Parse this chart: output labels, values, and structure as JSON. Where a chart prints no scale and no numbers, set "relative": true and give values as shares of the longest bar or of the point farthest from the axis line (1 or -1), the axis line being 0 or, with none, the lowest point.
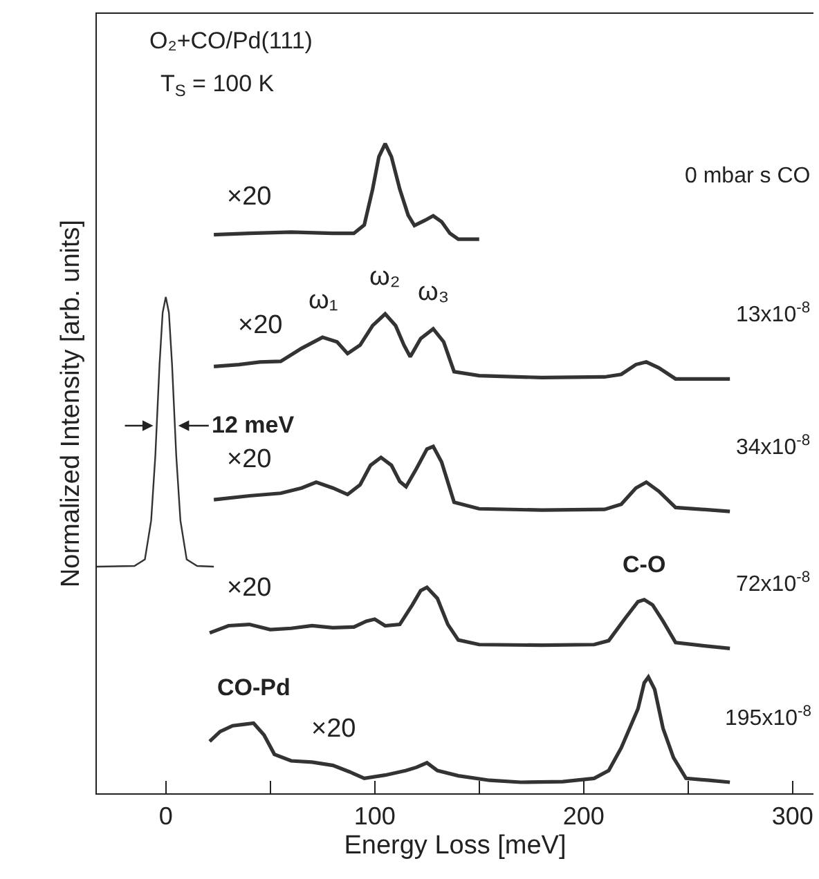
{
  "chart_data": {
    "type": "line",
    "relative": true,
    "xlabel": "Energy Loss [meV]",
    "ylabel": "Normalized Intensity [arb. units]",
    "xlim": [
      -33,
      310
    ],
    "xticks": [
      0,
      {
        "value": 50,
        "label": null
      },
      100,
      {
        "value": 150,
        "label": null
      },
      200,
      {
        "value": 250,
        "label": null
      },
      300
    ],
    "grid": false,
    "legend": false,
    "marker": "none",
    "line_style": "solid",
    "series": [
      {
        "color": "#333333",
        "x": [
          -33,
          -15,
          -10,
          -7,
          -5,
          -3,
          -1.5,
          0,
          1.5,
          3,
          5,
          7,
          10,
          15,
          23
        ],
        "values": [
          0.349,
          0.35,
          0.36,
          0.42,
          0.52,
          0.66,
          0.74,
          0.764,
          0.74,
          0.66,
          0.52,
          0.42,
          0.36,
          0.35,
          0.349
        ]
      },
      {
        "name": "0 mbar s CO",
        "color": "#333333",
        "x": [
          23,
          40,
          60,
          80,
          90,
          95,
          99,
          102,
          105,
          108,
          112,
          116,
          119,
          124,
          128,
          132,
          136,
          140,
          150
        ],
        "values": [
          0.86,
          0.862,
          0.864,
          0.862,
          0.862,
          0.875,
          0.93,
          0.98,
          1.0,
          0.98,
          0.93,
          0.89,
          0.874,
          0.882,
          0.889,
          0.88,
          0.862,
          0.853,
          0.853
        ]
      },
      {
        "name": "13x10$^{-8}$",
        "color": "#333333",
        "x": [
          23,
          35,
          45,
          55,
          65,
          75,
          82,
          87,
          93,
          99,
          105,
          110,
          114,
          117,
          122,
          128,
          133,
          138,
          150,
          180,
          210,
          218,
          225,
          230,
          236,
          244,
          270
        ],
        "values": [
          0.657,
          0.66,
          0.664,
          0.665,
          0.685,
          0.702,
          0.695,
          0.677,
          0.69,
          0.72,
          0.738,
          0.72,
          0.69,
          0.672,
          0.7,
          0.715,
          0.695,
          0.649,
          0.643,
          0.64,
          0.641,
          0.645,
          0.66,
          0.664,
          0.655,
          0.638,
          0.638
        ]
      },
      {
        "name": "34x10$^{-8}$",
        "color": "#333333",
        "x": [
          23,
          40,
          55,
          65,
          72,
          80,
          87,
          93,
          98,
          103,
          108,
          112,
          115,
          120,
          125,
          128,
          132,
          138,
          150,
          180,
          210,
          218,
          225,
          230,
          236,
          244,
          270
        ],
        "values": [
          0.452,
          0.458,
          0.462,
          0.47,
          0.479,
          0.47,
          0.46,
          0.475,
          0.505,
          0.517,
          0.505,
          0.48,
          0.472,
          0.5,
          0.53,
          0.534,
          0.51,
          0.448,
          0.438,
          0.436,
          0.437,
          0.445,
          0.47,
          0.479,
          0.465,
          0.44,
          0.434
        ]
      },
      {
        "name": "72x10$^{-8}$",
        "color": "#333333",
        "x": [
          21,
          30,
          40,
          50,
          60,
          70,
          80,
          90,
          96,
          100,
          105,
          112,
          118,
          122,
          125,
          130,
          135,
          140,
          150,
          180,
          205,
          212,
          220,
          226,
          229,
          233,
          238,
          244,
          255,
          270
        ],
        "values": [
          0.247,
          0.258,
          0.26,
          0.252,
          0.254,
          0.258,
          0.255,
          0.256,
          0.265,
          0.268,
          0.258,
          0.26,
          0.29,
          0.312,
          0.317,
          0.3,
          0.26,
          0.236,
          0.229,
          0.228,
          0.229,
          0.235,
          0.27,
          0.295,
          0.298,
          0.29,
          0.265,
          0.232,
          0.228,
          0.223
        ]
      },
      {
        "name": "195x10$^{-8}$",
        "color": "#333333",
        "x": [
          21,
          26,
          32,
          37,
          42,
          47,
          52,
          60,
          70,
          80,
          88,
          95,
          105,
          115,
          120,
          125,
          130,
          140,
          155,
          170,
          190,
          205,
          212,
          218,
          222,
          226,
          229,
          231,
          234,
          238,
          243,
          249,
          260,
          270
        ],
        "values": [
          0.08,
          0.095,
          0.104,
          0.106,
          0.108,
          0.09,
          0.06,
          0.05,
          0.048,
          0.043,
          0.033,
          0.023,
          0.028,
          0.035,
          0.04,
          0.047,
          0.035,
          0.027,
          0.02,
          0.017,
          0.018,
          0.023,
          0.035,
          0.07,
          0.1,
          0.13,
          0.17,
          0.179,
          0.16,
          0.1,
          0.055,
          0.023,
          0.02,
          0.017
        ]
      }
    ],
    "annotations": [
      "O₂+CO/Pd(111)",
      "T$_{S}$ = 100 K",
      {
        "text": "×20",
        "x": 40,
        "y": 0.862
      },
      {
        "text": "×20",
        "x": 45,
        "y": 0.664
      },
      {
        "text": "×20",
        "x": 40,
        "y": 0.458
      },
      {
        "text": "×20",
        "x": 40,
        "y": 0.26
      },
      {
        "text": "×20",
        "x": 80,
        "y": 0.043
      },
      {
        "text": "ω₁",
        "x": 75,
        "y": 0.702
      },
      {
        "text": "ω₂",
        "x": 105,
        "y": 0.738
      },
      {
        "text": "ω₃",
        "x": 128,
        "y": 0.715
      },
      {
        "text": "12 meV",
        "x": 6,
        "y": 0.566
      },
      {
        "text": "C-O",
        "x": 229,
        "y": 0.298
      },
      {
        "text": "CO-Pd",
        "x": 42,
        "y": 0.108
      }
    ]
  }
}
